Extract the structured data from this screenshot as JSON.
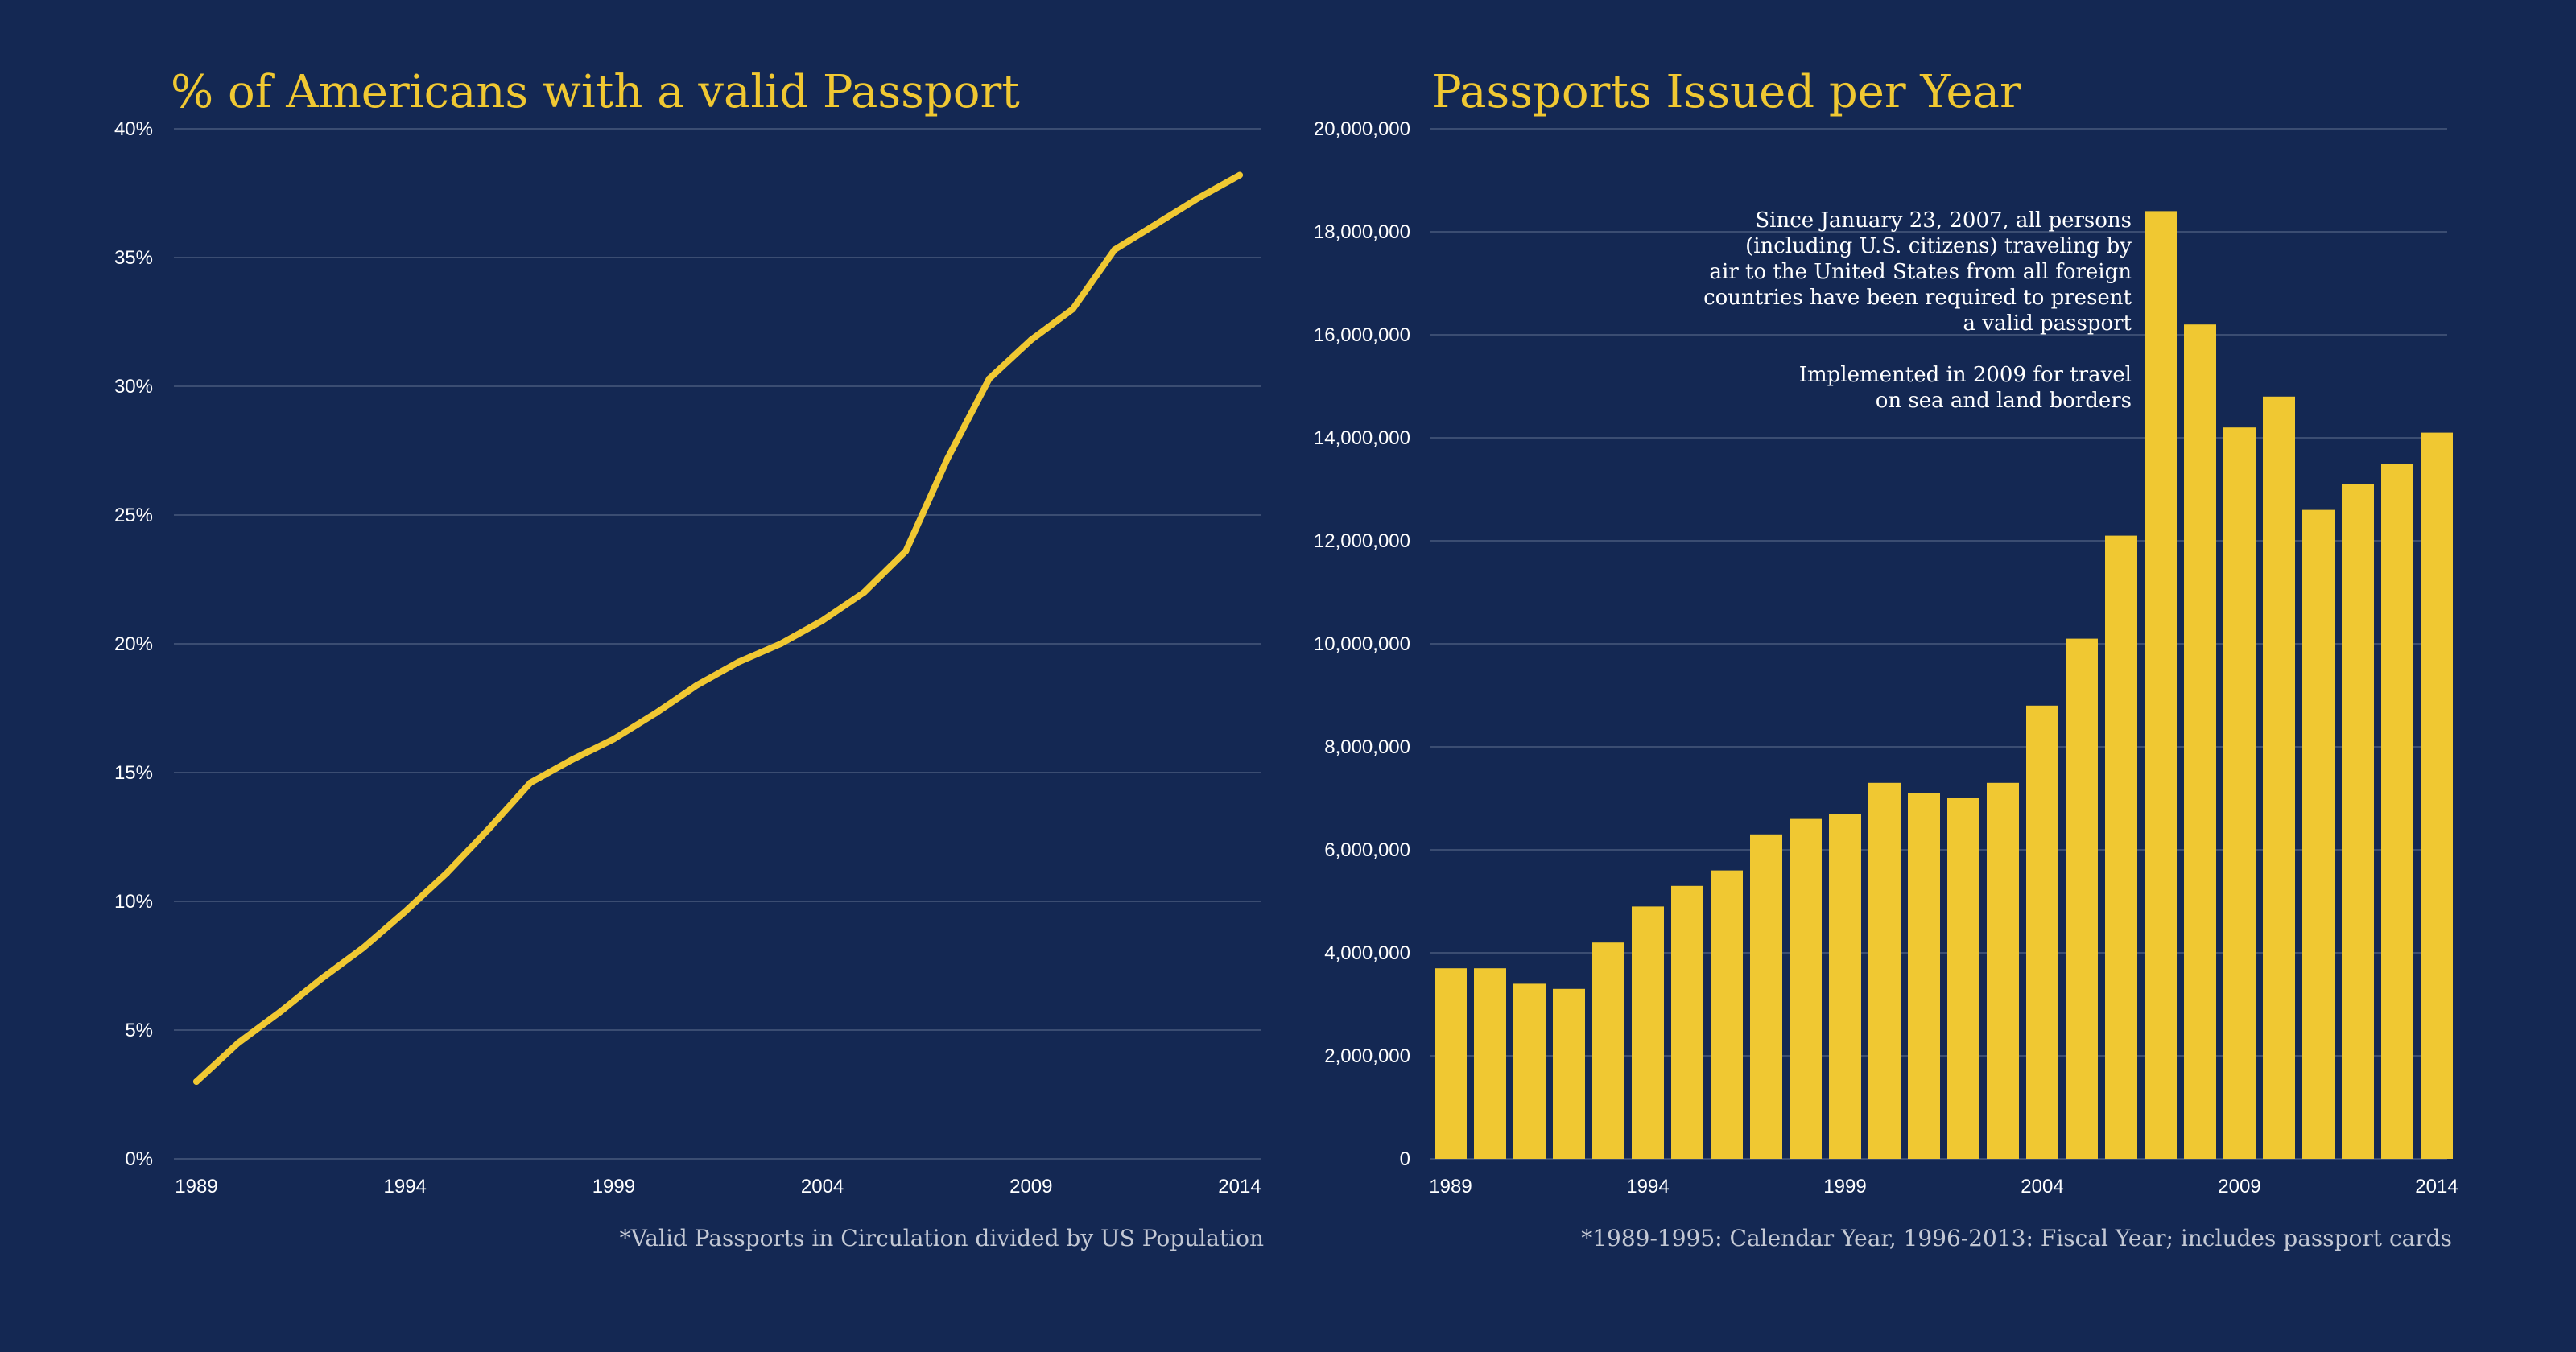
{
  "colors": {
    "background": "#142853",
    "accent": "#f0c832",
    "grid": "#3b4d72",
    "text": "#ffffff",
    "footnote": "#c3c8d4"
  },
  "chart_data": [
    {
      "type": "line",
      "title": "% of Americans with a valid Passport",
      "x": [
        1989,
        1990,
        1991,
        1992,
        1993,
        1994,
        1995,
        1996,
        1997,
        1998,
        1999,
        2000,
        2001,
        2002,
        2003,
        2004,
        2005,
        2006,
        2007,
        2008,
        2009,
        2010,
        2011,
        2012,
        2013,
        2014
      ],
      "series": [
        {
          "name": "% with valid passport",
          "values": [
            3.0,
            4.5,
            5.7,
            7.0,
            8.2,
            9.6,
            11.1,
            12.8,
            14.6,
            15.5,
            16.3,
            17.3,
            18.4,
            19.3,
            20.0,
            20.9,
            22.0,
            23.6,
            27.2,
            30.3,
            31.8,
            33.0,
            35.3,
            36.3,
            37.3,
            38.2
          ]
        }
      ],
      "xlim": [
        1989,
        2014
      ],
      "ylim": [
        0,
        40
      ],
      "x_ticks": [
        "1989",
        "1994",
        "1999",
        "2004",
        "2009",
        "2014"
      ],
      "y_ticks": [
        "0%",
        "5%",
        "10%",
        "15%",
        "20%",
        "25%",
        "30%",
        "35%",
        "40%"
      ],
      "grid": true,
      "footnote": "*Valid Passports in Circulation divided by US Population"
    },
    {
      "type": "bar",
      "title": "Passports Issued per Year",
      "categories": [
        "1989",
        "1990",
        "1991",
        "1992",
        "1993",
        "1994",
        "1995",
        "1996",
        "1997",
        "1998",
        "1999",
        "2000",
        "2001",
        "2002",
        "2003",
        "2004",
        "2005",
        "2006",
        "2007",
        "2008",
        "2009",
        "2010",
        "2011",
        "2012",
        "2013",
        "2014"
      ],
      "values": [
        3700000,
        3700000,
        3400000,
        3300000,
        4200000,
        4900000,
        5300000,
        5600000,
        6300000,
        6600000,
        6700000,
        7300000,
        7100000,
        7000000,
        7300000,
        8800000,
        10100000,
        12100000,
        18400000,
        16200000,
        14200000,
        14800000,
        12600000,
        13100000,
        13500000,
        14100000
      ],
      "ylim": [
        0,
        20000000
      ],
      "x_ticks": [
        "1989",
        "1994",
        "1999",
        "2004",
        "2009",
        "2014"
      ],
      "y_ticks": [
        "0",
        "2,000,000",
        "4,000,000",
        "6,000,000",
        "8,000,000",
        "10,000,000",
        "12,000,000",
        "14,000,000",
        "16,000,000",
        "18,000,000",
        "20,000,000"
      ],
      "grid": true,
      "annotation_lines": [
        "Since January 23, 2007, all persons",
        "(including U.S. citizens) traveling by",
        "air to the United States from all foreign",
        "countries have been required to present",
        "a valid passport"
      ],
      "annotation2_lines": [
        "Implemented in 2009 for travel",
        "on sea and land borders"
      ],
      "footnote": "*1989-1995: Calendar Year, 1996-2013: Fiscal Year; includes passport cards"
    }
  ]
}
